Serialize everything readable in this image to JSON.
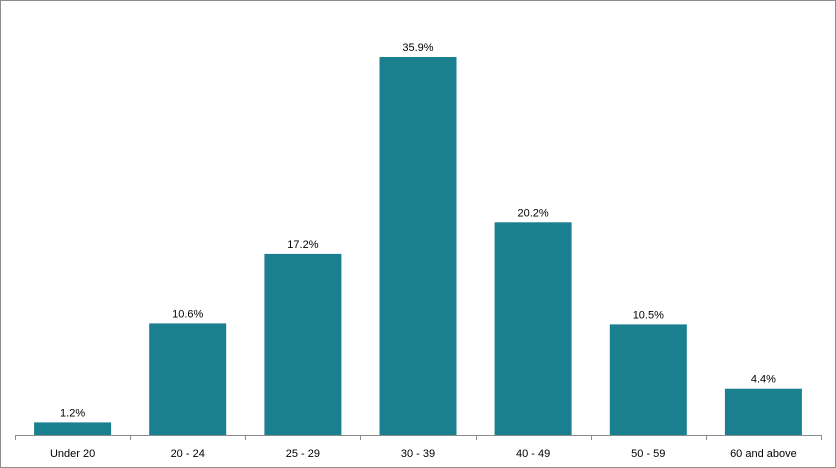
{
  "chart_data": {
    "type": "bar",
    "categories": [
      "Under 20",
      "20 - 24",
      "25 - 29",
      "30 - 39",
      "40 - 49",
      "50 - 59",
      "60 and above"
    ],
    "values": [
      1.2,
      10.6,
      17.2,
      35.9,
      20.2,
      10.5,
      4.4
    ],
    "value_labels": [
      "1.2%",
      "10.6%",
      "17.2%",
      "35.9%",
      "20.2%",
      "10.5%",
      "4.4%"
    ],
    "bar_color": "#1a7f8f",
    "title": "",
    "xlabel": "",
    "ylabel": "",
    "ylim": [
      0,
      40
    ],
    "grid": false,
    "legend": "none"
  }
}
